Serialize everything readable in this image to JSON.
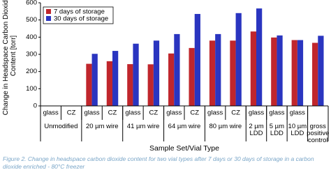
{
  "chart_data": {
    "type": "bar",
    "y_label": "Change in Headspace Carbon Dioxide\nContent [torr]",
    "x_label": "Sample Set/Vial Type",
    "caption": "Figure 2. Change in headspace carbon dioxide content for two vial types after 7 days or 30 days of storage in a carbon dioxide enriched - 80°C freezer",
    "categories": [
      "glass",
      "CZ",
      "glass",
      "CZ",
      "glass",
      "CZ",
      "glass",
      "CZ",
      "glass",
      "CZ",
      "glass",
      "glass",
      "glass",
      null
    ],
    "groups": [
      "Unmodified",
      "Unmodified",
      "20 µm wire",
      "20 µm wire",
      "41 µm wire",
      "41 µm wire",
      "64 µm wire",
      "64 µm wire",
      "80 µm wire",
      "80 µm wire",
      "2 µm\nLDD",
      "5 µm\nLDD",
      "10 µm\nLDD",
      "gross\npositive\ncontrol"
    ],
    "series": [
      {
        "name": "7 days of storage",
        "color": "#c0262c",
        "values": [
          0,
          0,
          245,
          260,
          243,
          242,
          305,
          337,
          380,
          380,
          433,
          398,
          383,
          367
        ]
      },
      {
        "name": "30 days of storage",
        "color": "#2a35c0",
        "values": [
          0,
          0,
          303,
          320,
          362,
          380,
          418,
          535,
          418,
          540,
          567,
          410,
          383,
          408
        ]
      }
    ],
    "ylim": [
      0,
      600
    ],
    "yticks": [
      0,
      100,
      200,
      300,
      400,
      500,
      600
    ],
    "grid": false,
    "legend": "upper left"
  }
}
